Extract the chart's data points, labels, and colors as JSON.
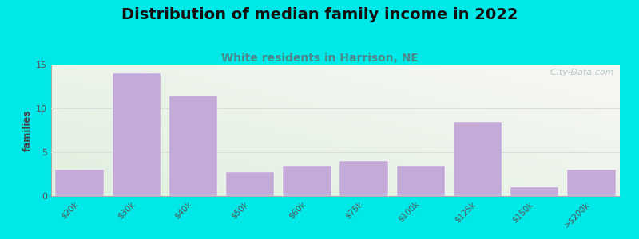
{
  "title": "Distribution of median family income in 2022",
  "subtitle": "White residents in Harrison, NE",
  "categories": [
    "$20k",
    "$30k",
    "$40k",
    "$50k",
    "$60k",
    "$75k",
    "$100k",
    "$125k",
    "$150k",
    ">$200k"
  ],
  "values": [
    3,
    14,
    11.5,
    2.7,
    3.5,
    4,
    3.5,
    8.5,
    1,
    3
  ],
  "bar_color": "#c4aad8",
  "background_outer": "#00e8e8",
  "ylabel": "families",
  "ylim": [
    0,
    15
  ],
  "yticks": [
    0,
    5,
    10,
    15
  ],
  "title_fontsize": 14,
  "subtitle_fontsize": 10,
  "title_color": "#111111",
  "subtitle_color": "#4a8a8a",
  "watermark": "  City-Data.com",
  "watermark_color": "#aabfc0",
  "grid_color": "#dddddd",
  "spine_color": "#aaaaaa"
}
